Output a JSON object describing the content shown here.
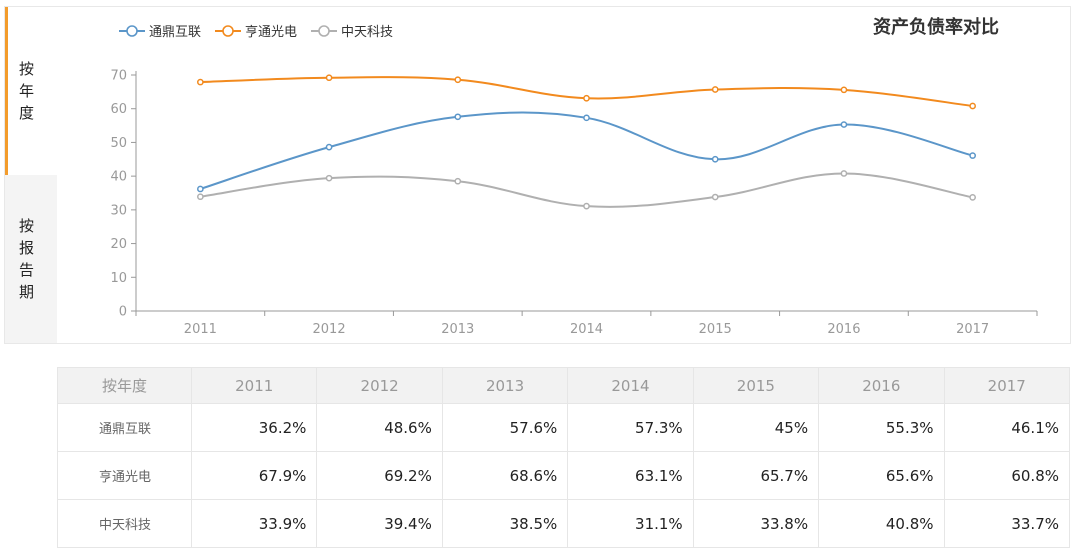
{
  "tabs": {
    "by_year": "按年度",
    "by_report": "按报告期"
  },
  "title": "资产负债率对比",
  "chart_data": {
    "type": "line",
    "title": "资产负债率对比",
    "categories": [
      "2011",
      "2012",
      "2013",
      "2014",
      "2015",
      "2016",
      "2017"
    ],
    "ylim": [
      0,
      70
    ],
    "yticks": [
      0,
      10,
      20,
      30,
      40,
      50,
      60,
      70
    ],
    "grid": false,
    "legend_position": "top-left",
    "series": [
      {
        "name": "通鼎互联",
        "color": "#5b96c9",
        "values": [
          36.2,
          48.6,
          57.6,
          57.3,
          45,
          55.3,
          46.1
        ]
      },
      {
        "name": "亨通光电",
        "color": "#f28a1e",
        "values": [
          67.9,
          69.2,
          68.6,
          63.1,
          65.7,
          65.6,
          60.8
        ]
      },
      {
        "name": "中天科技",
        "color": "#b0b0b0",
        "values": [
          33.9,
          39.4,
          38.5,
          31.1,
          33.8,
          40.8,
          33.7
        ]
      }
    ]
  },
  "table": {
    "corner": "按年度",
    "rows": [
      {
        "name": "通鼎互联",
        "cells": [
          "36.2%",
          "48.6%",
          "57.6%",
          "57.3%",
          "45%",
          "55.3%",
          "46.1%"
        ]
      },
      {
        "name": "亨通光电",
        "cells": [
          "67.9%",
          "69.2%",
          "68.6%",
          "63.1%",
          "65.7%",
          "65.6%",
          "60.8%"
        ]
      },
      {
        "name": "中天科技",
        "cells": [
          "33.9%",
          "39.4%",
          "38.5%",
          "31.1%",
          "33.8%",
          "40.8%",
          "33.7%"
        ]
      }
    ]
  }
}
